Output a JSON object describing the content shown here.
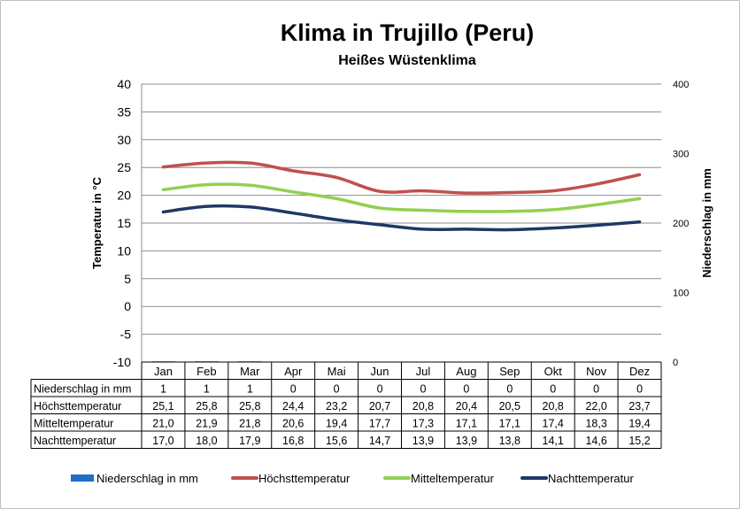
{
  "chart_data": {
    "type": "line",
    "title": "Klima in Trujillo (Peru)",
    "subtitle": "Heißes Wüstenklima",
    "ylabel": "Temperatur in °C",
    "y2label": "Niederschlag in mm",
    "ylim": [
      -10,
      40
    ],
    "yticks": [
      "40",
      "35",
      "30",
      "25",
      "20",
      "15",
      "10",
      "5",
      "0",
      "-5",
      "-10"
    ],
    "y2lim": [
      0,
      400
    ],
    "y2ticks": [
      "400",
      "300",
      "200",
      "100",
      "0"
    ],
    "grid": true,
    "legend_position": "bottom",
    "categories": [
      "Jan",
      "Feb",
      "Mar",
      "Apr",
      "Mai",
      "Jun",
      "Jul",
      "Aug",
      "Sep",
      "Okt",
      "Nov",
      "Dez"
    ],
    "series": [
      {
        "name": "Niederschlag in mm",
        "kind": "bar",
        "axis": "secondary",
        "color": "#1f6fc5",
        "values": [
          1,
          1,
          1,
          0,
          0,
          0,
          0,
          0,
          0,
          0,
          0,
          0
        ],
        "labels": [
          "1",
          "1",
          "1",
          "0",
          "0",
          "0",
          "0",
          "0",
          "0",
          "0",
          "0",
          "0"
        ]
      },
      {
        "name": "Höchsttemperatur",
        "kind": "line",
        "axis": "primary",
        "color": "#c0504d",
        "values": [
          25.1,
          25.8,
          25.8,
          24.4,
          23.2,
          20.7,
          20.8,
          20.4,
          20.5,
          20.8,
          22.0,
          23.7
        ],
        "labels": [
          "25,1",
          "25,8",
          "25,8",
          "24,4",
          "23,2",
          "20,7",
          "20,8",
          "20,4",
          "20,5",
          "20,8",
          "22,0",
          "23,7"
        ]
      },
      {
        "name": "Mitteltemperatur",
        "kind": "line",
        "axis": "primary",
        "color": "#92d050",
        "values": [
          21.0,
          21.9,
          21.8,
          20.6,
          19.4,
          17.7,
          17.3,
          17.1,
          17.1,
          17.4,
          18.3,
          19.4
        ],
        "labels": [
          "21,0",
          "21,9",
          "21,8",
          "20,6",
          "19,4",
          "17,7",
          "17,3",
          "17,1",
          "17,1",
          "17,4",
          "18,3",
          "19,4"
        ]
      },
      {
        "name": "Nachttemperatur",
        "kind": "line",
        "axis": "primary",
        "color": "#1f3864",
        "values": [
          17.0,
          18.0,
          17.9,
          16.8,
          15.6,
          14.7,
          13.9,
          13.9,
          13.8,
          14.1,
          14.6,
          15.2
        ],
        "labels": [
          "17,0",
          "18,0",
          "17,9",
          "16,8",
          "15,6",
          "14,7",
          "13,9",
          "13,9",
          "13,8",
          "14,1",
          "14,6",
          "15,2"
        ]
      }
    ]
  }
}
